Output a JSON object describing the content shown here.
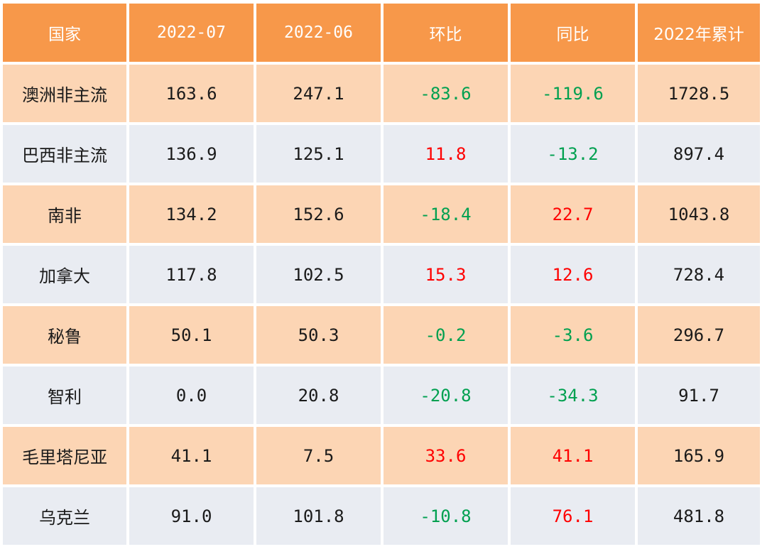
{
  "table": {
    "headers": [
      "国家",
      "2022-07",
      "2022-06",
      "环比",
      "同比",
      "2022年累计"
    ],
    "rows": [
      {
        "country": "澳洲非主流",
        "jul": "163.6",
        "jun": "247.1",
        "mom": "-83.6",
        "yoy": "-119.6",
        "ytd": "1728.5"
      },
      {
        "country": "巴西非主流",
        "jul": "136.9",
        "jun": "125.1",
        "mom": "11.8",
        "yoy": "-13.2",
        "ytd": "897.4"
      },
      {
        "country": "南非",
        "jul": "134.2",
        "jun": "152.6",
        "mom": "-18.4",
        "yoy": "22.7",
        "ytd": "1043.8"
      },
      {
        "country": "加拿大",
        "jul": "117.8",
        "jun": "102.5",
        "mom": "15.3",
        "yoy": "12.6",
        "ytd": "728.4"
      },
      {
        "country": "秘鲁",
        "jul": "50.1",
        "jun": "50.3",
        "mom": "-0.2",
        "yoy": "-3.6",
        "ytd": "296.7"
      },
      {
        "country": "智利",
        "jul": "0.0",
        "jun": "20.8",
        "mom": "-20.8",
        "yoy": "-34.3",
        "ytd": "91.7"
      },
      {
        "country": "毛里塔尼亚",
        "jul": "41.1",
        "jun": "7.5",
        "mom": "33.6",
        "yoy": "41.1",
        "ytd": "165.9"
      },
      {
        "country": "乌克兰",
        "jul": "91.0",
        "jun": "101.8",
        "mom": "-10.8",
        "yoy": "76.1",
        "ytd": "481.8"
      }
    ]
  },
  "colors": {
    "header_bg": "#f7984a",
    "header_text": "#ffffff",
    "row_odd_bg": "#fcd5b4",
    "row_even_bg": "#e9ecf2",
    "increase": "#ff0000",
    "decrease": "#00a050"
  }
}
